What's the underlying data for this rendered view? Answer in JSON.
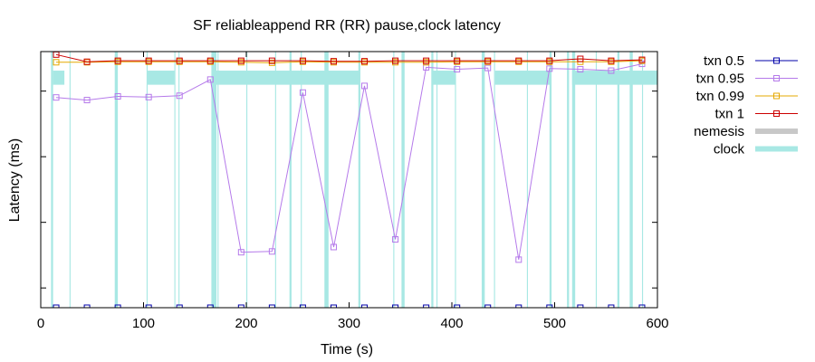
{
  "chart_data": {
    "type": "line",
    "title": "SF reliableappend RR (RR) pause,clock latency",
    "xlabel": "Time (s)",
    "ylabel": "Latency (ms)",
    "xlim": [
      0,
      600
    ],
    "ylog": true,
    "ylim": [
      0.5,
      4000
    ],
    "xticks": [
      0,
      100,
      200,
      300,
      400,
      500,
      600
    ],
    "xtick_labels": [
      "0",
      "100",
      "200",
      "300",
      "400",
      "500",
      "600"
    ],
    "grid": false,
    "legend_position": "outside-right",
    "series": [
      {
        "name": "txn 0.5",
        "color": "#0000aa",
        "x": [
          15,
          45,
          75,
          105,
          135,
          165,
          195,
          225,
          255,
          285,
          315,
          345,
          375,
          405,
          435,
          465,
          495,
          525,
          555,
          585
        ],
        "values": [
          0.5,
          0.5,
          0.5,
          0.5,
          0.5,
          0.5,
          0.5,
          0.5,
          0.5,
          0.5,
          0.5,
          0.5,
          0.5,
          0.5,
          0.5,
          0.5,
          0.5,
          0.5,
          0.5,
          0.5
        ]
      },
      {
        "name": "txn 0.95",
        "color": "#b57aea",
        "x": [
          15,
          45,
          75,
          105,
          135,
          165,
          195,
          225,
          255,
          285,
          315,
          345,
          375,
          405,
          435,
          465,
          495,
          525,
          555,
          585
        ],
        "values": [
          800,
          730,
          830,
          810,
          850,
          1500,
          3.5,
          3.6,
          950,
          4.2,
          1200,
          5.5,
          2300,
          2150,
          2250,
          2.7,
          2200,
          2150,
          2050,
          2600
        ]
      },
      {
        "name": "txn 0.99",
        "color": "#e6a800",
        "x": [
          15,
          45,
          75,
          105,
          135,
          165,
          195,
          225,
          255,
          285,
          315,
          345,
          375,
          405,
          435,
          465,
          495,
          525,
          555,
          585
        ],
        "values": [
          2750,
          2750,
          2800,
          2800,
          2800,
          2800,
          2750,
          2700,
          2800,
          2750,
          2750,
          2750,
          2750,
          2800,
          2800,
          2800,
          2800,
          2800,
          2800,
          2900
        ]
      },
      {
        "name": "txn 1",
        "color": "#cc0000",
        "x": [
          15,
          45,
          75,
          105,
          135,
          165,
          195,
          225,
          255,
          285,
          315,
          345,
          375,
          405,
          435,
          465,
          495,
          525,
          555,
          585
        ],
        "values": [
          3600,
          2800,
          2900,
          2900,
          2900,
          2900,
          2900,
          2900,
          2900,
          2850,
          2850,
          2900,
          2900,
          2900,
          2900,
          2900,
          2900,
          3100,
          2900,
          3000
        ]
      }
    ],
    "nemesis": {
      "name": "nemesis",
      "color": "#c8c8c8",
      "intervals": []
    },
    "clock": {
      "name": "clock",
      "color": "#a8e8e4",
      "bands": [
        {
          "x0": 12,
          "x1": 23,
          "y0": 1250,
          "y1": 2050
        },
        {
          "x0": 104,
          "x1": 130,
          "y0": 1250,
          "y1": 2050
        },
        {
          "x0": 167,
          "x1": 310,
          "y0": 1250,
          "y1": 2050
        },
        {
          "x0": 381,
          "x1": 404,
          "y0": 1250,
          "y1": 2050
        },
        {
          "x0": 442,
          "x1": 496,
          "y0": 1250,
          "y1": 2050
        },
        {
          "x0": 517,
          "x1": 600,
          "y0": 1250,
          "y1": 2050
        }
      ],
      "markers": [
        {
          "x": 10,
          "w": 2
        },
        {
          "x": 28,
          "w": 1
        },
        {
          "x": 72,
          "w": 3
        },
        {
          "x": 103,
          "w": 1
        },
        {
          "x": 130,
          "w": 1
        },
        {
          "x": 134,
          "w": 1
        },
        {
          "x": 166,
          "w": 5
        },
        {
          "x": 172,
          "w": 1
        },
        {
          "x": 200,
          "w": 1
        },
        {
          "x": 228,
          "w": 1
        },
        {
          "x": 242,
          "w": 2
        },
        {
          "x": 253,
          "w": 1
        },
        {
          "x": 276,
          "w": 4
        },
        {
          "x": 309,
          "w": 2
        },
        {
          "x": 343,
          "w": 1
        },
        {
          "x": 351,
          "w": 3
        },
        {
          "x": 380,
          "w": 2
        },
        {
          "x": 385,
          "w": 1
        },
        {
          "x": 403,
          "w": 1
        },
        {
          "x": 429,
          "w": 3
        },
        {
          "x": 441,
          "w": 1
        },
        {
          "x": 473,
          "w": 1
        },
        {
          "x": 495,
          "w": 2
        },
        {
          "x": 512,
          "w": 2
        },
        {
          "x": 517,
          "w": 3
        },
        {
          "x": 540,
          "w": 1
        },
        {
          "x": 561,
          "w": 2
        },
        {
          "x": 573,
          "w": 3
        },
        {
          "x": 585,
          "w": 1
        }
      ]
    }
  }
}
